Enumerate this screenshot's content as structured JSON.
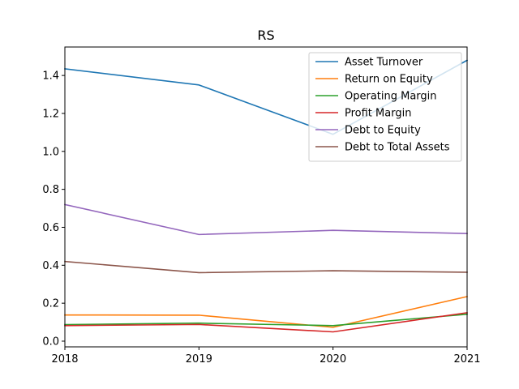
{
  "chart_data": {
    "type": "line",
    "title": "RS",
    "xlabel": "",
    "ylabel": "",
    "x": [
      "2018",
      "2019",
      "2020",
      "2021"
    ],
    "xlim": [
      2018,
      2021
    ],
    "ylim": [
      -0.03,
      1.55
    ],
    "yticks": [
      "0.0",
      "0.2",
      "0.4",
      "0.6",
      "0.8",
      "1.0",
      "1.2",
      "1.4"
    ],
    "grid": false,
    "legend_position": "top-right",
    "series": [
      {
        "name": "Asset Turnover",
        "color": "#1f77b4",
        "values": [
          1.435,
          1.35,
          1.09,
          1.48
        ]
      },
      {
        "name": "Return on Equity",
        "color": "#ff7f0e",
        "values": [
          0.138,
          0.137,
          0.073,
          0.235
        ]
      },
      {
        "name": "Operating Margin",
        "color": "#2ca02c",
        "values": [
          0.087,
          0.095,
          0.082,
          0.142
        ]
      },
      {
        "name": "Profit Margin",
        "color": "#d62728",
        "values": [
          0.082,
          0.088,
          0.049,
          0.15
        ]
      },
      {
        "name": "Debt to Equity",
        "color": "#9467bd",
        "values": [
          0.72,
          0.562,
          0.584,
          0.567
        ]
      },
      {
        "name": "Debt to Total Assets",
        "color": "#8c564b",
        "values": [
          0.42,
          0.361,
          0.371,
          0.363
        ]
      }
    ]
  }
}
